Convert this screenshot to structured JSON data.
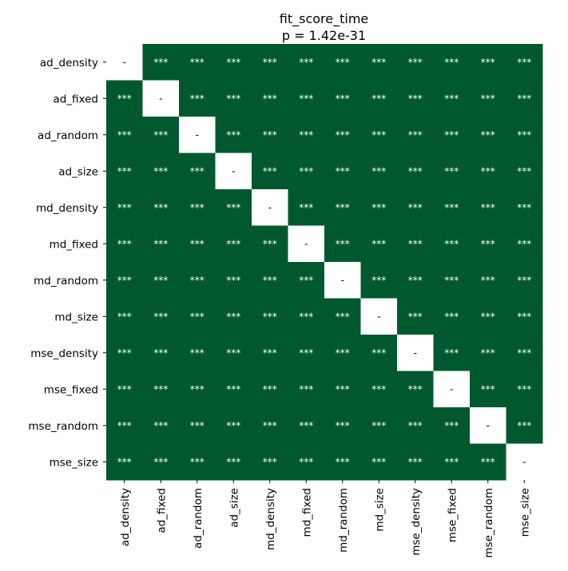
{
  "chart_data": {
    "type": "heatmap",
    "title": "fit_score_time",
    "subtitle": "p = 1.42e-31",
    "xlabel": "",
    "ylabel": "",
    "categories": [
      "ad_density",
      "ad_fixed",
      "ad_random",
      "ad_size",
      "md_density",
      "md_fixed",
      "md_random",
      "md_size",
      "mse_density",
      "mse_fixed",
      "mse_random",
      "mse_size"
    ],
    "significant_label": "***",
    "diagonal_label": "-",
    "cells": [
      [
        "-",
        "***",
        "***",
        "***",
        "***",
        "***",
        "***",
        "***",
        "***",
        "***",
        "***",
        "***"
      ],
      [
        "***",
        "-",
        "***",
        "***",
        "***",
        "***",
        "***",
        "***",
        "***",
        "***",
        "***",
        "***"
      ],
      [
        "***",
        "***",
        "-",
        "***",
        "***",
        "***",
        "***",
        "***",
        "***",
        "***",
        "***",
        "***"
      ],
      [
        "***",
        "***",
        "***",
        "-",
        "***",
        "***",
        "***",
        "***",
        "***",
        "***",
        "***",
        "***"
      ],
      [
        "***",
        "***",
        "***",
        "***",
        "-",
        "***",
        "***",
        "***",
        "***",
        "***",
        "***",
        "***"
      ],
      [
        "***",
        "***",
        "***",
        "***",
        "***",
        "-",
        "***",
        "***",
        "***",
        "***",
        "***",
        "***"
      ],
      [
        "***",
        "***",
        "***",
        "***",
        "***",
        "***",
        "-",
        "***",
        "***",
        "***",
        "***",
        "***"
      ],
      [
        "***",
        "***",
        "***",
        "***",
        "***",
        "***",
        "***",
        "-",
        "***",
        "***",
        "***",
        "***"
      ],
      [
        "***",
        "***",
        "***",
        "***",
        "***",
        "***",
        "***",
        "***",
        "-",
        "***",
        "***",
        "***"
      ],
      [
        "***",
        "***",
        "***",
        "***",
        "***",
        "***",
        "***",
        "***",
        "***",
        "-",
        "***",
        "***"
      ],
      [
        "***",
        "***",
        "***",
        "***",
        "***",
        "***",
        "***",
        "***",
        "***",
        "***",
        "-",
        "***"
      ],
      [
        "***",
        "***",
        "***",
        "***",
        "***",
        "***",
        "***",
        "***",
        "***",
        "***",
        "***",
        "-"
      ]
    ],
    "colors": {
      "significant_fill": "#00592e",
      "diagonal_fill": "#ffffff",
      "significant_text": "#ffffff",
      "diagonal_text": "#000000"
    },
    "grid": false,
    "legend": "none"
  }
}
